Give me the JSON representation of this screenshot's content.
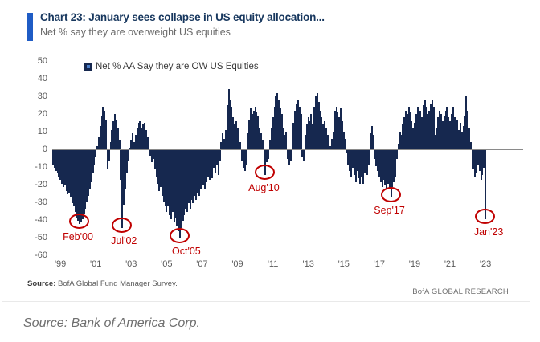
{
  "header": {
    "title": "Chart 23: January sees collapse in US equity allocation...",
    "subtitle": "Net % say they are overweight US equities"
  },
  "legend": {
    "label": "Net % AA Say they are OW US Equities"
  },
  "footer": {
    "source_label": "Source:",
    "source_text": " BofA Global Fund Manager Survey.",
    "brand": "BofA GLOBAL RESEARCH"
  },
  "caption": "Source: Bank of America Corp.",
  "colors": {
    "bar": "#16284f",
    "accent_bar": "#1f5cc5",
    "annotation": "#c00000",
    "axis_text": "#595959",
    "title_text": "#17375e"
  },
  "chart_data": {
    "type": "bar",
    "title": "Net % AA Say they are OW US Equities",
    "start_month": "Aug 1998",
    "end_month": "Jan 2023",
    "frequency": "monthly",
    "ylim": [
      -60,
      50
    ],
    "ytick_step": 10,
    "grid": false,
    "legend_position": "top-left",
    "xtick_labels": [
      "'99",
      "'01",
      "'03",
      "'05",
      "'07",
      "'09",
      "'11",
      "'13",
      "'15",
      "'17",
      "'19",
      "'21",
      "'23"
    ],
    "values": [
      -8,
      -10,
      -12,
      -13,
      -15,
      -17,
      -19,
      -21,
      -20,
      -23,
      -25,
      -24,
      -27,
      -30,
      -32,
      -35,
      -38,
      -40,
      -42,
      -41,
      -39,
      -36,
      -33,
      -29,
      -26,
      -22,
      -18,
      -13,
      -8,
      -4,
      2,
      7,
      13,
      19,
      24,
      22,
      17,
      -11,
      -6,
      4,
      11,
      16,
      20,
      17,
      12,
      5,
      -17,
      -44,
      -31,
      -22,
      -13,
      -6,
      1,
      5,
      9,
      4,
      8,
      12,
      15,
      16,
      12,
      14,
      15,
      11,
      7,
      3,
      -3,
      -7,
      -5,
      -11,
      -15,
      -19,
      -23,
      -21,
      -26,
      -29,
      -32,
      -35,
      -32,
      -37,
      -39,
      -35,
      -41,
      -38,
      -43,
      -46,
      -50,
      -44,
      -40,
      -37,
      -33,
      -35,
      -30,
      -33,
      -28,
      -30,
      -26,
      -28,
      -24,
      -26,
      -22,
      -24,
      -20,
      -22,
      -18,
      -15,
      -17,
      -12,
      -16,
      -10,
      -13,
      -8,
      -14,
      -6,
      4,
      9,
      6,
      11,
      25,
      34,
      28,
      24,
      18,
      14,
      16,
      12,
      7,
      4,
      -6,
      -10,
      -12,
      -8,
      9,
      17,
      23,
      20,
      22,
      24,
      21,
      19,
      12,
      9,
      5,
      -4,
      -14,
      -7,
      -5,
      5,
      12,
      18,
      24,
      30,
      32,
      28,
      23,
      20,
      12,
      8,
      10,
      -5,
      -8,
      -6,
      8,
      15,
      22,
      26,
      28,
      24,
      20,
      -4,
      -6,
      8,
      14,
      18,
      16,
      20,
      14,
      24,
      30,
      32,
      27,
      22,
      18,
      14,
      16,
      12,
      8,
      5,
      2,
      6,
      10,
      22,
      24,
      21,
      18,
      23,
      16,
      10,
      6,
      -2,
      -8,
      -12,
      -15,
      -10,
      -14,
      -18,
      -12,
      -16,
      -19,
      -15,
      -19,
      -13,
      -10,
      -14,
      -8,
      9,
      13,
      8,
      -5,
      -9,
      -12,
      -15,
      -18,
      -21,
      -17,
      -20,
      -22,
      -19,
      -22,
      -27,
      -21,
      -18,
      -15,
      -5,
      3,
      10,
      8,
      14,
      18,
      22,
      20,
      24,
      21,
      16,
      12,
      15,
      20,
      24,
      26,
      22,
      18,
      25,
      28,
      24,
      20,
      22,
      26,
      28,
      24,
      8,
      12,
      18,
      22,
      20,
      16,
      19,
      22,
      24,
      18,
      16,
      20,
      24,
      18,
      14,
      17,
      11,
      15,
      10,
      13,
      19,
      30,
      22,
      12,
      4,
      -6,
      -11,
      -15,
      -13,
      -8,
      -12,
      -17,
      -14,
      -10,
      -39
    ],
    "annotations": [
      {
        "label": "Feb'00",
        "index": 18,
        "value": -42,
        "dx": -2
      },
      {
        "label": "Jul'02",
        "index": 47,
        "value": -44,
        "dx": 2
      },
      {
        "label": "Oct'05",
        "index": 86,
        "value": -50,
        "dx": 8
      },
      {
        "label": "Aug'10",
        "index": 144,
        "value": -14,
        "dx": -2
      },
      {
        "label": "Sep'17",
        "index": 229,
        "value": -27,
        "dx": -2
      },
      {
        "label": "Jan'23",
        "index": 293,
        "value": -39,
        "dx": 4
      }
    ]
  }
}
